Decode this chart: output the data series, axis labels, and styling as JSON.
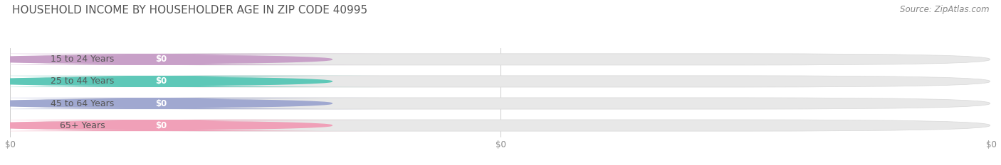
{
  "title": "HOUSEHOLD INCOME BY HOUSEHOLDER AGE IN ZIP CODE 40995",
  "source": "Source: ZipAtlas.com",
  "categories": [
    "15 to 24 Years",
    "25 to 44 Years",
    "45 to 64 Years",
    "65+ Years"
  ],
  "values": [
    0,
    0,
    0,
    0
  ],
  "bar_colors": [
    "#c8a0c8",
    "#5ec8b8",
    "#a0a8d0",
    "#f0a0b8"
  ],
  "bar_track_color": "#e8e8e8",
  "bar_track_border": "#d8d8d8",
  "label_bg": "#ffffff",
  "background_color": "#ffffff",
  "title_fontsize": 11,
  "source_fontsize": 8.5,
  "label_text_color": "#555555",
  "value_text_color": "#ffffff",
  "tick_color": "#888888",
  "grid_color": "#cccccc"
}
